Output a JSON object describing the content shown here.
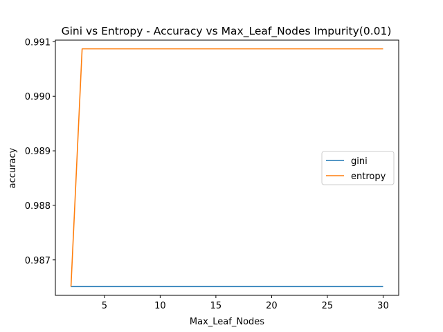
{
  "chart_data": {
    "type": "line",
    "title": "Gini vs Entropy - Accuracy vs Max_Leaf_Nodes Impurity(0.01)",
    "xlabel": "Max_Leaf_Nodes",
    "ylabel": "accuracy",
    "xlim": [
      0.6,
      31.4
    ],
    "ylim": [
      0.98635,
      0.99103
    ],
    "xticks": [
      5,
      10,
      15,
      20,
      25,
      30
    ],
    "yticks": [
      0.987,
      0.988,
      0.989,
      0.99,
      0.991
    ],
    "ytick_labels": [
      "0.987",
      "0.988",
      "0.989",
      "0.990",
      "0.991"
    ],
    "grid": false,
    "legend_position": "center-right",
    "x": [
      2,
      3,
      4,
      5,
      6,
      7,
      8,
      9,
      10,
      11,
      12,
      13,
      14,
      15,
      16,
      17,
      18,
      19,
      20,
      21,
      22,
      23,
      24,
      25,
      26,
      27,
      28,
      29,
      30
    ],
    "series": [
      {
        "name": "gini",
        "color": "#1f77b4",
        "values": [
          0.98651,
          0.98651,
          0.98651,
          0.98651,
          0.98651,
          0.98651,
          0.98651,
          0.98651,
          0.98651,
          0.98651,
          0.98651,
          0.98651,
          0.98651,
          0.98651,
          0.98651,
          0.98651,
          0.98651,
          0.98651,
          0.98651,
          0.98651,
          0.98651,
          0.98651,
          0.98651,
          0.98651,
          0.98651,
          0.98651,
          0.98651,
          0.98651,
          0.98651
        ]
      },
      {
        "name": "entropy",
        "color": "#ff7f0e",
        "values": [
          0.98651,
          0.99087,
          0.99087,
          0.99087,
          0.99087,
          0.99087,
          0.99087,
          0.99087,
          0.99087,
          0.99087,
          0.99087,
          0.99087,
          0.99087,
          0.99087,
          0.99087,
          0.99087,
          0.99087,
          0.99087,
          0.99087,
          0.99087,
          0.99087,
          0.99087,
          0.99087,
          0.99087,
          0.99087,
          0.99087,
          0.99087,
          0.99087,
          0.99087
        ]
      }
    ]
  }
}
